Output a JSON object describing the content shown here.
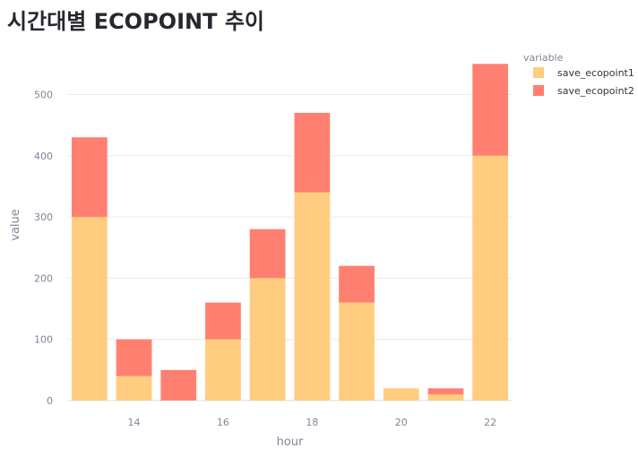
{
  "page": {
    "title": "시간대별 ECOPOINT 추이"
  },
  "chart_data": {
    "type": "bar",
    "stacked": true,
    "x": [
      13,
      14,
      15,
      16,
      17,
      18,
      19,
      20,
      21,
      22
    ],
    "xlabel": "hour",
    "ylabel": "value",
    "xticks": [
      14,
      16,
      18,
      20,
      22
    ],
    "yticks": [
      0,
      100,
      200,
      300,
      400,
      500
    ],
    "xlim": [
      12.5,
      22.5
    ],
    "ylim": [
      0,
      550
    ],
    "grid": true,
    "legend": {
      "title": "variable",
      "placement": "right"
    },
    "series": [
      {
        "name": "save_ecopoint1",
        "color": "#ffcc80",
        "values": [
          300,
          40,
          0,
          100,
          200,
          340,
          160,
          20,
          10,
          400
        ]
      },
      {
        "name": "save_ecopoint2",
        "color": "#ff8070",
        "values": [
          130,
          60,
          50,
          60,
          80,
          130,
          60,
          0,
          10,
          150
        ]
      }
    ]
  }
}
